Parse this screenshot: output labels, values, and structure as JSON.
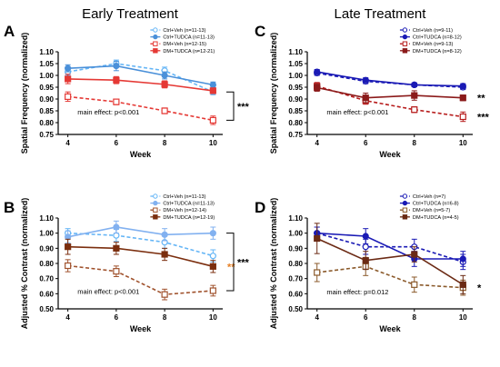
{
  "figure": {
    "titles": [
      "Early Treatment",
      "Late Treatment"
    ]
  },
  "chart_data": [
    {
      "panel": "A",
      "column_title": "Early Treatment",
      "type": "line",
      "xlabel": "Week",
      "ylabel": "Spatial Frequency (normalized)",
      "x": [
        4,
        6,
        8,
        10
      ],
      "xlim": [
        3.6,
        10.4
      ],
      "ylim": [
        0.75,
        1.1
      ],
      "yticks": [
        0.75,
        0.8,
        0.85,
        0.9,
        0.95,
        1.0,
        1.05,
        1.1
      ],
      "ytick_labels": [
        "0.75",
        "0.80",
        "0.85",
        "0.90",
        "0.95",
        "1.00",
        "1.05",
        "1.10"
      ],
      "xtick_labels": [
        "4",
        "6",
        "8",
        "10"
      ],
      "legend_position": "top-right",
      "series": [
        {
          "name": "Ctrl+Veh (n=11-13)",
          "values": [
            1.015,
            1.05,
            1.02,
            0.93
          ],
          "errors": [
            0.015,
            0.015,
            0.015,
            0.012
          ],
          "color": "#64B5F6",
          "dashed": true,
          "marker": "circle",
          "filled": false
        },
        {
          "name": "Ctrl+TUDCA (n=11-13)",
          "values": [
            1.03,
            1.04,
            1.0,
            0.96
          ],
          "errors": [
            0.015,
            0.02,
            0.015,
            0.012
          ],
          "color": "#4A90D9",
          "dashed": false,
          "marker": "circle",
          "filled": true
        },
        {
          "name": "DM+Veh (n=12-15)",
          "values": [
            0.91,
            0.888,
            0.85,
            0.81
          ],
          "errors": [
            0.02,
            0.012,
            0.012,
            0.018
          ],
          "color": "#E53935",
          "dashed": true,
          "marker": "square",
          "filled": false
        },
        {
          "name": "DM+TUDCA (n=12-21)",
          "values": [
            0.985,
            0.98,
            0.962,
            0.935
          ],
          "errors": [
            0.02,
            0.015,
            0.015,
            0.012
          ],
          "color": "#E53935",
          "dashed": false,
          "marker": "square",
          "filled": true
        }
      ],
      "annotations": [
        {
          "text": "main effect: p<0.001",
          "x": 4.4,
          "y": 0.835
        }
      ],
      "significance": [
        {
          "text": "***",
          "bracket": [
            0.93,
            0.81
          ]
        }
      ]
    },
    {
      "panel": "C",
      "column_title": "Late Treatment",
      "type": "line",
      "xlabel": "Week",
      "ylabel": "Spatial Frequency (normalized)",
      "x": [
        4,
        6,
        8,
        10
      ],
      "xlim": [
        3.6,
        10.4
      ],
      "ylim": [
        0.75,
        1.1
      ],
      "yticks": [
        0.75,
        0.8,
        0.85,
        0.9,
        0.95,
        1.0,
        1.05,
        1.1
      ],
      "ytick_labels": [
        "0.75",
        "0.80",
        "0.85",
        "0.90",
        "0.95",
        "1.00",
        "1.05",
        "1.10"
      ],
      "xtick_labels": [
        "4",
        "6",
        "8",
        "10"
      ],
      "legend_position": "top-right",
      "series": [
        {
          "name": "Ctrl+Veh (n=9-11)",
          "values": [
            1.01,
            0.975,
            0.96,
            0.95
          ],
          "errors": [
            0.01,
            0.01,
            0.008,
            0.01
          ],
          "color": "#1A1AB5",
          "dashed": true,
          "marker": "circle",
          "filled": false
        },
        {
          "name": "Ctrl+TUDCA (n=8-12)",
          "values": [
            1.015,
            0.98,
            0.96,
            0.955
          ],
          "errors": [
            0.01,
            0.01,
            0.008,
            0.01
          ],
          "color": "#1A1AB5",
          "dashed": false,
          "marker": "circle",
          "filled": true
        },
        {
          "name": "DM+Veh (n=9-13)",
          "values": [
            0.955,
            0.893,
            0.855,
            0.825
          ],
          "errors": [
            0.015,
            0.015,
            0.012,
            0.02
          ],
          "color": "#B71C1C",
          "dashed": true,
          "marker": "square",
          "filled": false
        },
        {
          "name": "DM+TUDCA (n=8-12)",
          "values": [
            0.948,
            0.905,
            0.915,
            0.905
          ],
          "errors": [
            0.015,
            0.02,
            0.02,
            0.012
          ],
          "color": "#8B1A1A",
          "dashed": false,
          "marker": "square",
          "filled": true
        }
      ],
      "annotations": [
        {
          "text": "main effect: p<0.001",
          "x": 4.4,
          "y": 0.835
        }
      ],
      "significance": [
        {
          "text": "**",
          "at": 0.905
        },
        {
          "text": "***",
          "at": 0.825
        }
      ]
    },
    {
      "panel": "B",
      "column_title": "Early Treatment",
      "type": "line",
      "xlabel": "Week",
      "ylabel": "Adjusted % Contrast (normalized)",
      "x": [
        4,
        6,
        8,
        10
      ],
      "xlim": [
        3.6,
        10.4
      ],
      "ylim": [
        0.5,
        1.1
      ],
      "yticks": [
        0.5,
        0.6,
        0.7,
        0.8,
        0.9,
        1.0,
        1.1
      ],
      "ytick_labels": [
        "0.50",
        "0.60",
        "0.70",
        "0.80",
        "0.90",
        "1.00",
        "1.10"
      ],
      "xtick_labels": [
        "4",
        "6",
        "8",
        "10"
      ],
      "legend_position": "top-right",
      "series": [
        {
          "name": "Ctrl+Veh (n=11-13)",
          "values": [
            1.0,
            0.985,
            0.94,
            0.85
          ],
          "errors": [
            0.03,
            0.04,
            0.04,
            0.04
          ],
          "color": "#64B5F6",
          "dashed": true,
          "marker": "circle",
          "filled": false
        },
        {
          "name": "Ctrl+TUDCA (n=11-13)",
          "values": [
            0.975,
            1.04,
            0.99,
            1.0
          ],
          "errors": [
            0.04,
            0.04,
            0.04,
            0.04
          ],
          "color": "#82B1F0",
          "dashed": false,
          "marker": "circle",
          "filled": true
        },
        {
          "name": "DM+Veh (n=12-14)",
          "values": [
            0.785,
            0.748,
            0.595,
            0.62
          ],
          "errors": [
            0.04,
            0.035,
            0.035,
            0.035
          ],
          "color": "#A0522D",
          "dashed": true,
          "marker": "square",
          "filled": false
        },
        {
          "name": "DM+TUDCA (n=12-19)",
          "values": [
            0.91,
            0.9,
            0.86,
            0.78
          ],
          "errors": [
            0.05,
            0.04,
            0.04,
            0.04
          ],
          "color": "#7B2E0E",
          "dashed": false,
          "marker": "square",
          "filled": true
        }
      ],
      "annotations": [
        {
          "text": "main effect: p<0.001",
          "x": 4.4,
          "y": 0.6
        }
      ],
      "significance": [
        {
          "text": "**",
          "at": 0.78,
          "color": "#E67E22"
        },
        {
          "text": "***",
          "bracket": [
            1.0,
            0.62
          ]
        }
      ]
    },
    {
      "panel": "D",
      "column_title": "Late Treatment",
      "type": "line",
      "xlabel": "Week",
      "ylabel": "Adjusted % Contrast (normalized)",
      "x": [
        4,
        6,
        8,
        10
      ],
      "xlim": [
        3.6,
        10.4
      ],
      "ylim": [
        0.5,
        1.1
      ],
      "yticks": [
        0.5,
        0.6,
        0.7,
        0.8,
        0.9,
        1.0,
        1.1
      ],
      "ytick_labels": [
        "0.50",
        "0.60",
        "0.70",
        "0.80",
        "0.90",
        "1.00",
        "1.10"
      ],
      "xtick_labels": [
        "4",
        "6",
        "8",
        "10"
      ],
      "legend_position": "top-right",
      "series": [
        {
          "name": "Ctrl+Veh (n=7)",
          "values": [
            1.0,
            0.91,
            0.91,
            0.81
          ],
          "errors": [
            0.04,
            0.05,
            0.05,
            0.05
          ],
          "color": "#1A1AB5",
          "dashed": true,
          "marker": "circle",
          "filled": false
        },
        {
          "name": "Ctrl+TUDCA (n=6-8)",
          "values": [
            1.0,
            0.98,
            0.83,
            0.83
          ],
          "errors": [
            0.04,
            0.05,
            0.05,
            0.05
          ],
          "color": "#1A1AB5",
          "dashed": false,
          "marker": "circle",
          "filled": true
        },
        {
          "name": "DM+Veh (n=5-7)",
          "values": [
            0.74,
            0.78,
            0.66,
            0.64
          ],
          "errors": [
            0.06,
            0.06,
            0.05,
            0.05
          ],
          "color": "#8B5A2B",
          "dashed": true,
          "marker": "square",
          "filled": false
        },
        {
          "name": "DM+TUDCA (n=4-5)",
          "values": [
            0.965,
            0.82,
            0.86,
            0.66
          ],
          "errors": [
            0.1,
            0.06,
            0.05,
            0.06
          ],
          "color": "#6B2A14",
          "dashed": false,
          "marker": "square",
          "filled": true
        }
      ],
      "annotations": [
        {
          "text": "main effect: p=0.012",
          "x": 4.4,
          "y": 0.595
        }
      ],
      "significance": [
        {
          "text": "*",
          "at": 0.64
        }
      ]
    }
  ]
}
